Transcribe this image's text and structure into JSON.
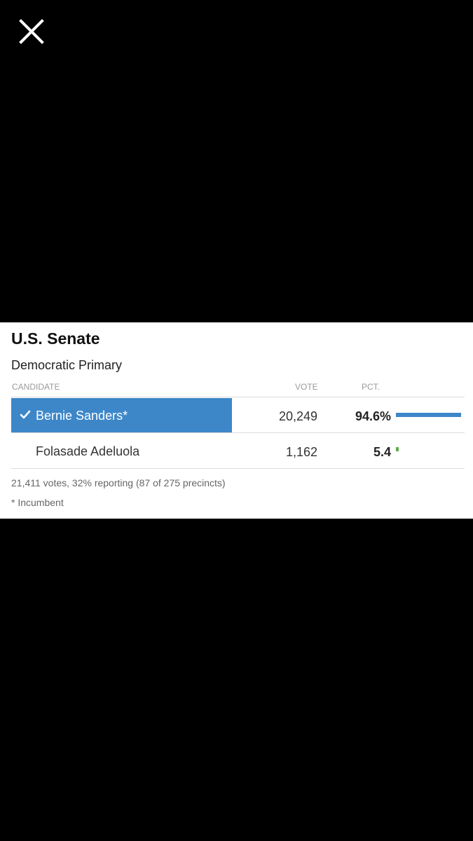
{
  "viewer": {
    "close_icon": "close-icon"
  },
  "race": {
    "title": "U.S. Senate",
    "subtitle": "Democratic Primary",
    "headers": {
      "candidate": "CANDIDATE",
      "vote": "VOTE",
      "pct": "PCT."
    },
    "candidates": [
      {
        "name": "Bernie Sanders*",
        "votes": "20,249",
        "pct_label": "94.6%",
        "pct_value": 94.6,
        "winner": true,
        "bar_color": "#3d87c9"
      },
      {
        "name": "Folasade Adeluola",
        "votes": "1,162",
        "pct_label": "5.4",
        "pct_value": 5.4,
        "winner": false,
        "bar_color": "#5fae4a"
      }
    ],
    "reporting": "21,411 votes, 32% reporting (87 of 275 precincts)",
    "footnote": "* Incumbent"
  },
  "colors": {
    "background": "#000000",
    "card": "#ffffff",
    "winner_highlight": "#3d87c9"
  }
}
